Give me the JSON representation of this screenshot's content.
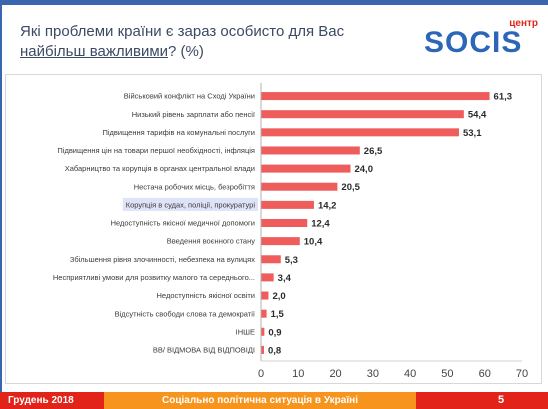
{
  "header": {
    "title_line1": "Які проблеми країни є зараз особисто для Вас",
    "title_underlined": "найбільш важливими",
    "title_rest": "? (%)"
  },
  "logo": {
    "small": "центр",
    "word": "SOCIS"
  },
  "colors": {
    "bar": "#ee5c5c",
    "accent_blue": "#3a66b0",
    "footer_red": "#e2231a",
    "footer_orange": "#f7941d",
    "highlight": "#dfe3f7"
  },
  "chart_data": {
    "type": "bar",
    "orientation": "horizontal",
    "categories": [
      "Військовий конфлікт на Сході України",
      "Низький рівень зарплати або пенсії",
      "Підвищення тарифів на комунальні послуги",
      "Підвищення цін на товари першої необхідності, інфляція",
      "Хабарництво та корупція в органах центральної влади",
      "Нестача робочих місць, безробіття",
      "Корупція в судах, поліції, прокуратурі",
      "Недоступність якісної медичної допомоги",
      "Введення воєнного стану",
      "Збільшення рівня злочинності, небезпека на вулицях",
      "Несприятливі умови для розвитку малого та середнього...",
      "Недоступність якісної освіти",
      "Відсутність свободи слова та демократії",
      "ІНШЕ",
      "ВВ/ ВІДМОВА ВІД ВІДПОВІДІ"
    ],
    "values": [
      61.3,
      54.4,
      53.1,
      26.5,
      24.0,
      20.5,
      14.2,
      12.4,
      10.4,
      5.3,
      3.4,
      2.0,
      1.5,
      0.9,
      0.8
    ],
    "value_labels": [
      "61,3",
      "54,4",
      "53,1",
      "26,5",
      "24,0",
      "20,5",
      "14,2",
      "12,4",
      "10,4",
      "5,3",
      "3,4",
      "2,0",
      "1,5",
      "0,9",
      "0,8"
    ],
    "highlighted_category_index": 6,
    "xlim": [
      0,
      70
    ],
    "xticks": [
      0,
      10,
      20,
      30,
      40,
      50,
      60,
      70
    ],
    "grid": false
  },
  "footer": {
    "date": "Грудень 2018",
    "center": "Соціально політична ситуація в Україні",
    "page": "5"
  }
}
